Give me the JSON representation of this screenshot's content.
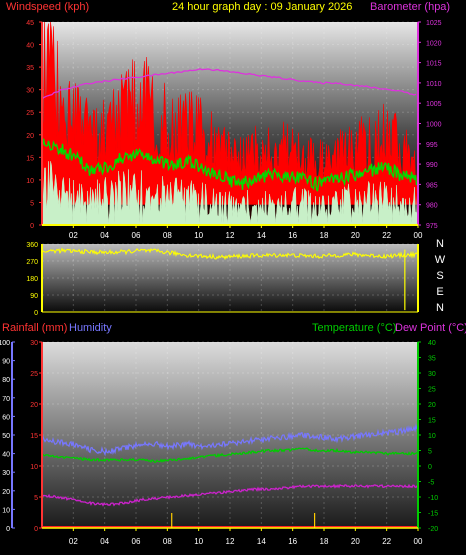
{
  "header": {
    "title": "24 hour graph day : 09 January 2026",
    "left_label": "Windspeed (kph)",
    "right_label": "Barometer (hpa)"
  },
  "colors": {
    "wind_gust": "#ff0000",
    "wind_avg": "#00dd00",
    "wind_speed": "#c8f0c8",
    "barometer": "#dd33dd",
    "direction": "#ffff00",
    "rain": "#ff2222",
    "humidity": "#7777ff",
    "temperature": "#00cc00",
    "dewpoint": "#cc22cc",
    "axis_left": "#ff3333",
    "axis_right_top": "#dd33dd",
    "axis_right_bottom": "#00cc00",
    "dir_axis": "#ffff00",
    "x_axis": "#ffff00"
  },
  "compass": [
    "N",
    "W",
    "S",
    "E",
    "N"
  ],
  "x_ticks": [
    "02",
    "04",
    "06",
    "08",
    "10",
    "12",
    "14",
    "16",
    "18",
    "20",
    "22",
    "00"
  ],
  "bottom_labels": {
    "rainfall": "Rainfall (mm)",
    "humidity": "Humidity",
    "temperature": "Temperature (°C)",
    "dewpoint": "Dew Point (°C)"
  },
  "chart_data": [
    {
      "type": "line",
      "name": "wind-barometer",
      "ylabel_left": "Windspeed (kph)",
      "ylabel_right": "Barometer (hpa)",
      "ylim_left": [
        0,
        45
      ],
      "ylim_right": [
        975,
        1025
      ],
      "yticks_left": [
        0,
        5,
        10,
        15,
        20,
        25,
        30,
        35,
        40,
        45
      ],
      "yticks_right": [
        975,
        980,
        985,
        990,
        995,
        1000,
        1005,
        1010,
        1015,
        1020,
        1025
      ],
      "x": [
        "01:00",
        "02:00",
        "03:00",
        "04:00",
        "05:00",
        "06:00",
        "07:00",
        "08:00",
        "09:00",
        "10:00",
        "11:00",
        "12:00",
        "13:00",
        "14:00",
        "15:00",
        "16:00",
        "17:00",
        "18:00",
        "19:00",
        "20:00",
        "21:00",
        "22:00",
        "23:00",
        "00:00"
      ],
      "series": [
        {
          "key": "gust",
          "values": [
            38,
            32,
            26,
            20,
            24,
            28,
            30,
            27,
            22,
            24,
            21,
            18,
            15,
            17,
            18,
            18,
            15,
            15,
            16,
            18,
            20,
            22,
            18,
            15
          ]
        },
        {
          "key": "average",
          "values": [
            19,
            17,
            15,
            12,
            13,
            15,
            16,
            14,
            13,
            14,
            12,
            11,
            9,
            10,
            11,
            11,
            10,
            9,
            10,
            11,
            12,
            13,
            11,
            10
          ]
        },
        {
          "key": "speed",
          "values": [
            11,
            10,
            9,
            7,
            8,
            9,
            9,
            8,
            8,
            8,
            7,
            6,
            5,
            6,
            6,
            6,
            6,
            5,
            6,
            7,
            7,
            8,
            6,
            6
          ]
        },
        {
          "key": "barometer",
          "values": [
            1006,
            1008,
            1009,
            1010,
            1010.5,
            1011,
            1011.5,
            1012,
            1012.5,
            1013,
            1013.5,
            1013,
            1012.5,
            1012,
            1011.5,
            1011,
            1010.5,
            1010,
            1010,
            1009.5,
            1009,
            1008.5,
            1008,
            1007
          ]
        }
      ]
    },
    {
      "type": "line",
      "name": "wind-direction",
      "ylim": [
        0,
        360
      ],
      "yticks": [
        0,
        90,
        180,
        270,
        360
      ],
      "x": [
        "01:00",
        "02:00",
        "03:00",
        "04:00",
        "05:00",
        "06:00",
        "07:00",
        "08:00",
        "09:00",
        "10:00",
        "11:00",
        "12:00",
        "13:00",
        "14:00",
        "15:00",
        "16:00",
        "17:00",
        "18:00",
        "19:00",
        "20:00",
        "21:00",
        "22:00",
        "23:00",
        "00:00"
      ],
      "series": [
        {
          "key": "direction",
          "values": [
            320,
            325,
            322,
            318,
            315,
            318,
            325,
            322,
            312,
            300,
            295,
            290,
            295,
            298,
            300,
            302,
            298,
            295,
            300,
            305,
            300,
            295,
            300,
            305
          ]
        }
      ]
    },
    {
      "type": "line",
      "name": "temperature-humidity-rain",
      "ylim_rain": [
        0,
        30
      ],
      "ylim_humidity": [
        0,
        100
      ],
      "ylim_temp": [
        -20,
        40
      ],
      "yticks_rain": [
        0,
        5,
        10,
        15,
        20,
        25,
        30
      ],
      "yticks_humidity": [
        0,
        10,
        20,
        30,
        40,
        50,
        60,
        70,
        80,
        90,
        100
      ],
      "yticks_temp": [
        -20,
        -15,
        -10,
        -5,
        0,
        5,
        10,
        15,
        20,
        25,
        30,
        35,
        40
      ],
      "x": [
        "01:00",
        "02:00",
        "03:00",
        "04:00",
        "05:00",
        "06:00",
        "07:00",
        "08:00",
        "09:00",
        "10:00",
        "11:00",
        "12:00",
        "13:00",
        "14:00",
        "15:00",
        "16:00",
        "17:00",
        "18:00",
        "19:00",
        "20:00",
        "21:00",
        "22:00",
        "23:00",
        "00:00"
      ],
      "series": [
        {
          "key": "humidity",
          "values": [
            48,
            46,
            45,
            42,
            41,
            43,
            45,
            45,
            44,
            45,
            44,
            45,
            46,
            47,
            48,
            49,
            50,
            49,
            48,
            49,
            50,
            51,
            52,
            54
          ]
        },
        {
          "key": "temperature",
          "values": [
            3.5,
            3,
            2.5,
            2,
            2,
            2,
            2,
            1.5,
            2,
            2.5,
            3,
            3.5,
            4,
            4.5,
            5,
            5,
            5.5,
            5,
            5,
            4.5,
            4.5,
            4,
            4,
            4
          ]
        },
        {
          "key": "dewpoint",
          "values": [
            -9.5,
            -10,
            -11,
            -12,
            -12.5,
            -12,
            -11,
            -10.5,
            -10,
            -9.5,
            -9,
            -8.5,
            -8,
            -7.5,
            -7.5,
            -7,
            -6.5,
            -6.5,
            -6.5,
            -6.5,
            -6.5,
            -6.5,
            -6.5,
            -6.5
          ]
        },
        {
          "key": "rainfall",
          "values": [
            0,
            0,
            0,
            0,
            0,
            0,
            0,
            0,
            0,
            0,
            0,
            0,
            0,
            0,
            0,
            0,
            0,
            0,
            0,
            0,
            0,
            0,
            0,
            0
          ]
        }
      ]
    }
  ]
}
